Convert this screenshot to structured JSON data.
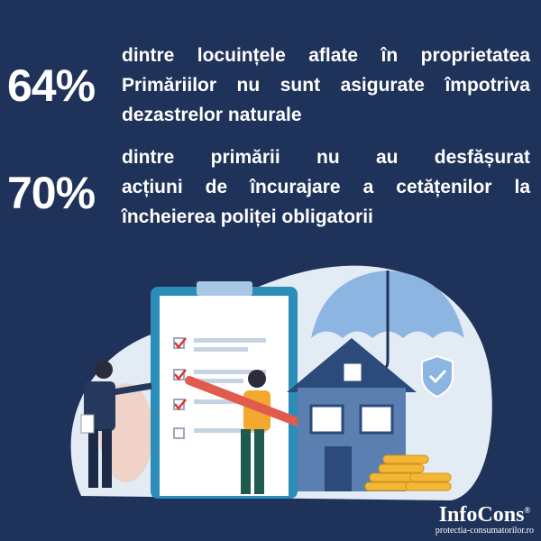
{
  "stats": [
    {
      "value": "64%",
      "lines": [
        "dintre locuințele aflate în proprietatea",
        "Primăriilor nu sunt asigurate împotriva",
        "dezastrelor naturale"
      ]
    },
    {
      "value": "70%",
      "lines": [
        "dintre primării nu au desfășurat",
        "acțiuni de încurajare a cetățenilor la",
        "încheierea poliței obligatorii"
      ]
    }
  ],
  "logo": {
    "name": "InfoCons",
    "registered": "®",
    "site": "protectia-consumatorilor.ro"
  },
  "colors": {
    "background": "#1f3259",
    "illustration_bg": "#e3ebf5",
    "clipboard": "#2b8db8",
    "house": "#5a7fb0",
    "coins": "#f2b833"
  }
}
